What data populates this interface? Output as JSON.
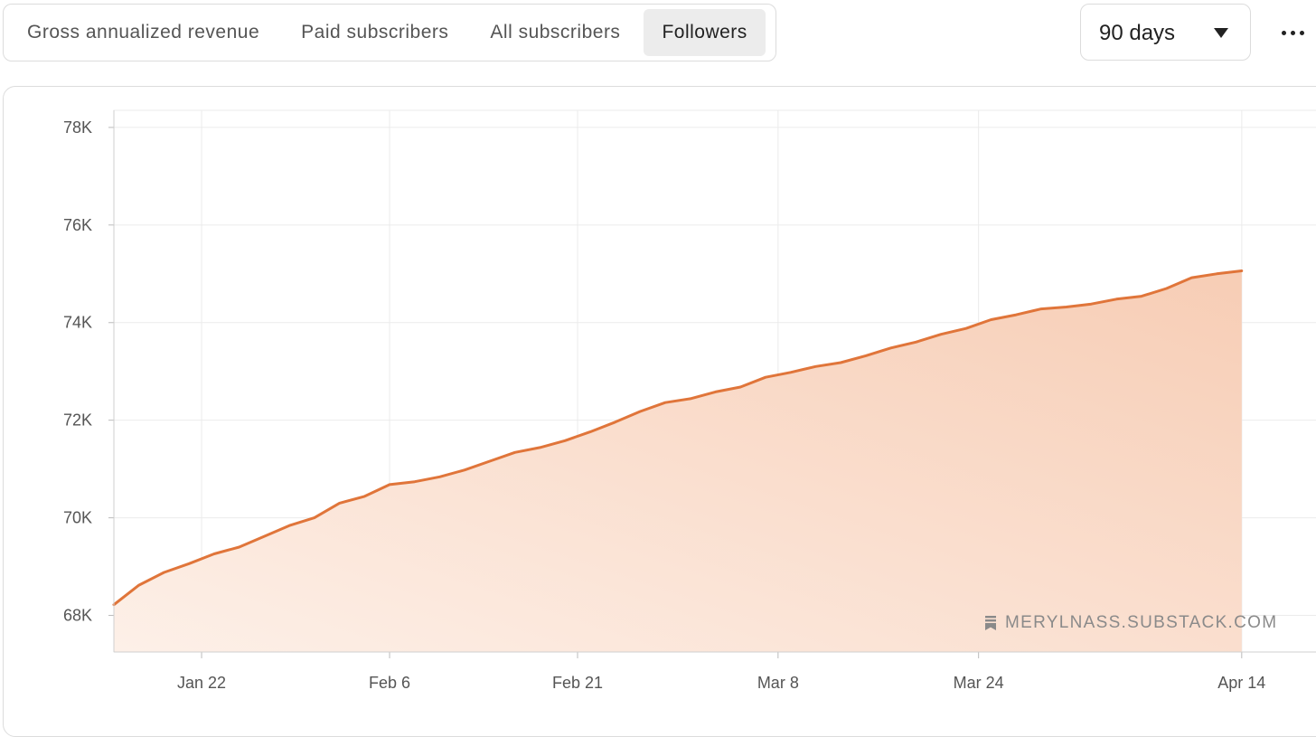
{
  "tabs": [
    {
      "label": "Gross annualized revenue",
      "active": false
    },
    {
      "label": "Paid subscribers",
      "active": false
    },
    {
      "label": "All subscribers",
      "active": false
    },
    {
      "label": "Followers",
      "active": true
    }
  ],
  "range_selector": {
    "value": "90 days",
    "icon": "caret-down-icon"
  },
  "more_menu": {
    "icon": "more-horizontal-icon"
  },
  "watermark": {
    "text": "MERYLNASS.SUBSTACK.COM",
    "icon": "substack-bookmark-icon"
  },
  "colors": {
    "line": "#e0753a",
    "fill_top": "#f7cdb5",
    "fill_bottom": "#fdf0e8",
    "grid": "#ebebeb"
  },
  "chart_data": {
    "type": "area",
    "title": "",
    "xlabel": "",
    "ylabel": "",
    "y_ticks": [
      68000,
      70000,
      72000,
      74000,
      76000,
      78000
    ],
    "y_tick_labels": [
      "68K",
      "70K",
      "72K",
      "74K",
      "76K",
      "78K"
    ],
    "ylim": [
      67250,
      78350
    ],
    "x_ticks": [
      "2024-01-22",
      "2024-02-06",
      "2024-02-21",
      "2024-03-08",
      "2024-03-24",
      "2024-04-14"
    ],
    "x_tick_labels": [
      "Jan 22",
      "Feb 6",
      "Feb 21",
      "Mar 8",
      "Mar 24",
      "Apr 14"
    ],
    "xlim": [
      "2024-01-15",
      "2024-04-20"
    ],
    "grid": true,
    "legend": "none",
    "series": [
      {
        "points": [
          [
            "2024-01-15",
            68220
          ],
          [
            "2024-01-17",
            68620
          ],
          [
            "2024-01-19",
            68880
          ],
          [
            "2024-01-21",
            69060
          ],
          [
            "2024-01-23",
            69260
          ],
          [
            "2024-01-25",
            69400
          ],
          [
            "2024-01-27",
            69620
          ],
          [
            "2024-01-29",
            69840
          ],
          [
            "2024-01-31",
            70000
          ],
          [
            "2024-02-02",
            70300
          ],
          [
            "2024-02-04",
            70440
          ],
          [
            "2024-02-05",
            70560
          ],
          [
            "2024-02-06",
            70680
          ],
          [
            "2024-02-08",
            70740
          ],
          [
            "2024-02-10",
            70840
          ],
          [
            "2024-02-12",
            70980
          ],
          [
            "2024-02-14",
            71160
          ],
          [
            "2024-02-16",
            71340
          ],
          [
            "2024-02-18",
            71440
          ],
          [
            "2024-02-20",
            71580
          ],
          [
            "2024-02-22",
            71760
          ],
          [
            "2024-02-24",
            71960
          ],
          [
            "2024-02-26",
            72180
          ],
          [
            "2024-02-28",
            72360
          ],
          [
            "2024-03-01",
            72440
          ],
          [
            "2024-03-03",
            72580
          ],
          [
            "2024-03-05",
            72680
          ],
          [
            "2024-03-07",
            72880
          ],
          [
            "2024-03-09",
            72980
          ],
          [
            "2024-03-11",
            73100
          ],
          [
            "2024-03-13",
            73180
          ],
          [
            "2024-03-15",
            73320
          ],
          [
            "2024-03-17",
            73480
          ],
          [
            "2024-03-19",
            73600
          ],
          [
            "2024-03-21",
            73760
          ],
          [
            "2024-03-23",
            73880
          ],
          [
            "2024-03-25",
            74060
          ],
          [
            "2024-03-27",
            74160
          ],
          [
            "2024-03-29",
            74280
          ],
          [
            "2024-03-31",
            74320
          ],
          [
            "2024-04-02",
            74380
          ],
          [
            "2024-04-04",
            74480
          ],
          [
            "2024-04-06",
            74540
          ],
          [
            "2024-04-08",
            74700
          ],
          [
            "2024-04-10",
            74920
          ],
          [
            "2024-04-12",
            75000
          ],
          [
            "2024-04-14",
            75060
          ]
        ]
      }
    ]
  }
}
